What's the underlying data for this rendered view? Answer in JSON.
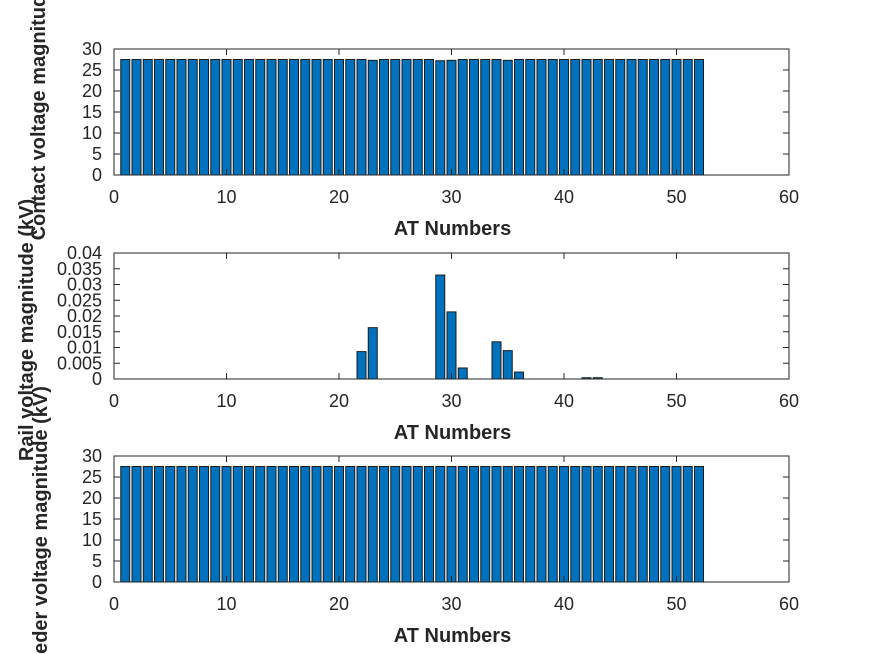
{
  "chart_data": [
    {
      "type": "bar",
      "xlabel": "AT Numbers",
      "ylabel": "Contact voltage magnitude",
      "xlim": [
        0,
        60
      ],
      "ylim": [
        0,
        30
      ],
      "xticks": [
        "0",
        "10",
        "20",
        "30",
        "40",
        "50",
        "60"
      ],
      "yticks": [
        "0",
        "5",
        "10",
        "15",
        "20",
        "25",
        "30"
      ],
      "bar_color": "#0072BD",
      "x": [
        1,
        2,
        3,
        4,
        5,
        6,
        7,
        8,
        9,
        10,
        11,
        12,
        13,
        14,
        15,
        16,
        17,
        18,
        19,
        20,
        21,
        22,
        23,
        24,
        25,
        26,
        27,
        28,
        29,
        30,
        31,
        32,
        33,
        34,
        35,
        36,
        37,
        38,
        39,
        40,
        41,
        42,
        43,
        44,
        45,
        46,
        47,
        48,
        49,
        50,
        51,
        52
      ],
      "values": [
        27.5,
        27.5,
        27.5,
        27.5,
        27.5,
        27.5,
        27.5,
        27.5,
        27.5,
        27.5,
        27.5,
        27.5,
        27.5,
        27.5,
        27.5,
        27.5,
        27.5,
        27.5,
        27.5,
        27.5,
        27.5,
        27.5,
        27.3,
        27.5,
        27.5,
        27.5,
        27.5,
        27.5,
        27.2,
        27.3,
        27.5,
        27.5,
        27.5,
        27.5,
        27.3,
        27.5,
        27.5,
        27.5,
        27.5,
        27.5,
        27.5,
        27.5,
        27.5,
        27.5,
        27.5,
        27.5,
        27.5,
        27.5,
        27.5,
        27.5,
        27.5,
        27.5
      ]
    },
    {
      "type": "bar",
      "xlabel": "AT Numbers",
      "ylabel": "Rail voltage magnitude (kV)",
      "xlim": [
        0,
        60
      ],
      "ylim": [
        0,
        0.04
      ],
      "xticks": [
        "0",
        "10",
        "20",
        "30",
        "40",
        "50",
        "60"
      ],
      "yticks": [
        "0",
        "0.005",
        "0.01",
        "0.015",
        "0.02",
        "0.025",
        "0.03",
        "0.035",
        "0.04"
      ],
      "bar_color": "#0072BD",
      "x": [
        1,
        2,
        3,
        4,
        5,
        6,
        7,
        8,
        9,
        10,
        11,
        12,
        13,
        14,
        15,
        16,
        17,
        18,
        19,
        20,
        21,
        22,
        23,
        24,
        25,
        26,
        27,
        28,
        29,
        30,
        31,
        32,
        33,
        34,
        35,
        36,
        37,
        38,
        39,
        40,
        41,
        42,
        43,
        44,
        45,
        46,
        47,
        48,
        49,
        50,
        51,
        52
      ],
      "values": [
        0,
        0,
        0,
        0,
        0,
        0,
        0,
        0,
        0,
        0,
        0,
        0,
        0,
        0,
        0,
        0,
        0,
        0,
        0,
        0,
        0,
        0.0087,
        0.0163,
        0,
        0,
        0,
        0,
        0,
        0.033,
        0.0213,
        0.0035,
        0,
        0,
        0.0118,
        0.009,
        0.0022,
        0,
        0,
        0,
        0,
        0,
        0.0004,
        0.0004,
        0,
        0,
        0,
        0,
        0,
        0,
        0,
        0,
        0
      ]
    },
    {
      "type": "bar",
      "xlabel": "AT Numbers",
      "ylabel": "eder voltage magnitude (kV)",
      "xlim": [
        0,
        60
      ],
      "ylim": [
        0,
        30
      ],
      "xticks": [
        "0",
        "10",
        "20",
        "30",
        "40",
        "50",
        "60"
      ],
      "yticks": [
        "0",
        "5",
        "10",
        "15",
        "20",
        "25",
        "30"
      ],
      "bar_color": "#0072BD",
      "x": [
        1,
        2,
        3,
        4,
        5,
        6,
        7,
        8,
        9,
        10,
        11,
        12,
        13,
        14,
        15,
        16,
        17,
        18,
        19,
        20,
        21,
        22,
        23,
        24,
        25,
        26,
        27,
        28,
        29,
        30,
        31,
        32,
        33,
        34,
        35,
        36,
        37,
        38,
        39,
        40,
        41,
        42,
        43,
        44,
        45,
        46,
        47,
        48,
        49,
        50,
        51,
        52
      ],
      "values": [
        27.5,
        27.5,
        27.5,
        27.5,
        27.5,
        27.5,
        27.5,
        27.5,
        27.5,
        27.5,
        27.5,
        27.5,
        27.5,
        27.5,
        27.5,
        27.5,
        27.5,
        27.5,
        27.5,
        27.5,
        27.5,
        27.5,
        27.5,
        27.5,
        27.5,
        27.5,
        27.5,
        27.5,
        27.5,
        27.5,
        27.5,
        27.5,
        27.5,
        27.5,
        27.5,
        27.5,
        27.5,
        27.5,
        27.5,
        27.5,
        27.5,
        27.5,
        27.5,
        27.5,
        27.5,
        27.5,
        27.5,
        27.5,
        27.5,
        27.5,
        27.5,
        27.5
      ]
    }
  ]
}
